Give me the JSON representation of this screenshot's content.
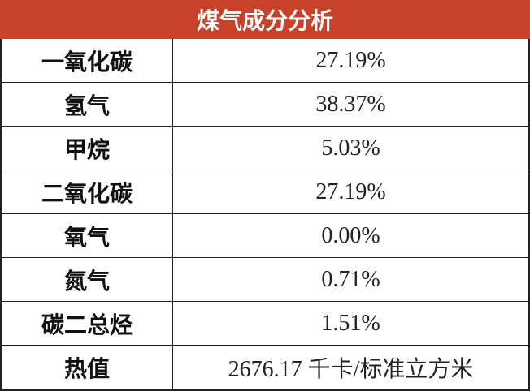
{
  "table": {
    "title": "煤气成分分析",
    "rows": [
      [
        "一氧化碳",
        "27.19%"
      ],
      [
        "氢气",
        "38.37%"
      ],
      [
        "甲烷",
        "5.03%"
      ],
      [
        "二氧化碳",
        "27.19%"
      ],
      [
        "氧气",
        "0.00%"
      ],
      [
        "氮气",
        "0.71%"
      ],
      [
        "碳二总烃",
        "1.51%"
      ],
      [
        "热值",
        "2676.17 千卡/标准立方米"
      ]
    ]
  }
}
